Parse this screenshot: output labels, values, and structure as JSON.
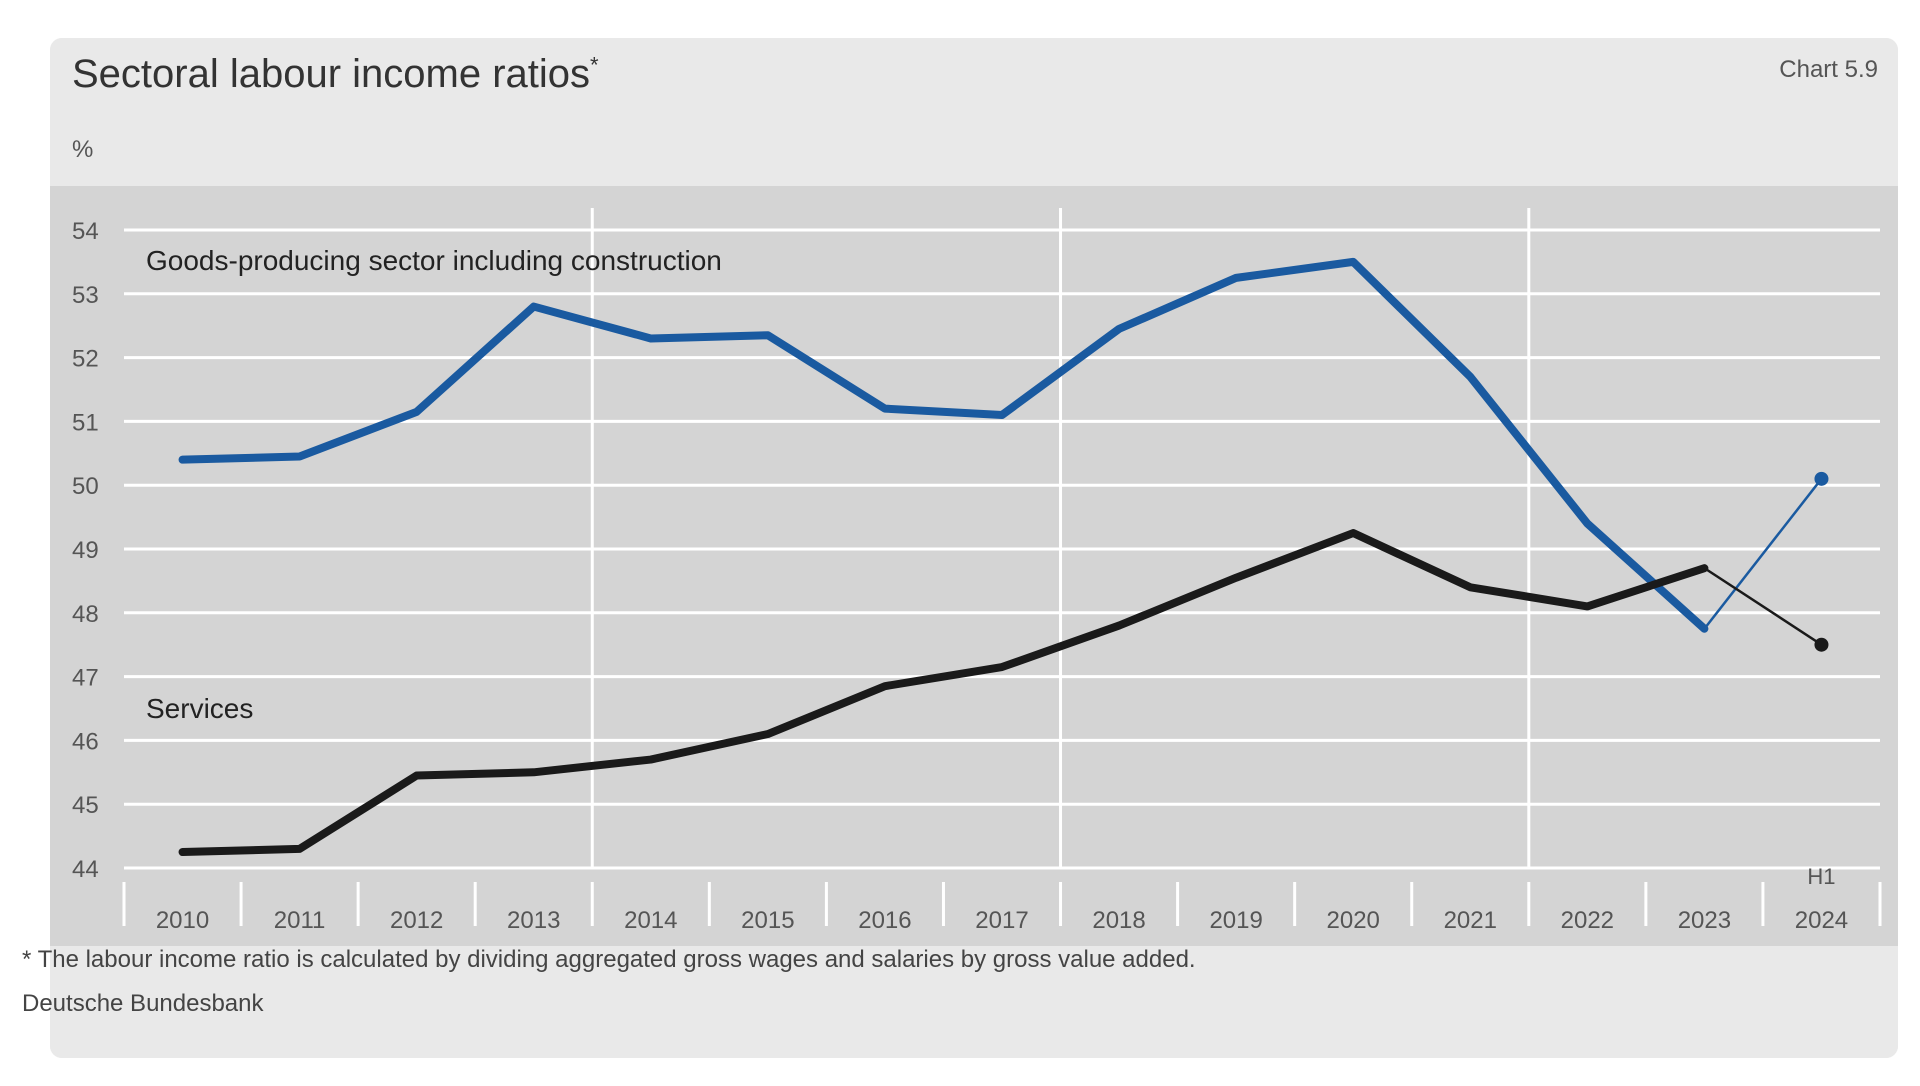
{
  "header": {
    "title": "Sectoral labour income ratios",
    "title_marker": "*",
    "chart_number": "Chart 5.9",
    "unit": "%"
  },
  "footer": {
    "footnote": "* The labour income ratio is calculated by dividing aggregated gross wages and salaries by gross value added.",
    "source": "Deutsche Bundesbank"
  },
  "colors": {
    "goods_series": "#1a5aa0",
    "services_series": "#1a1a1a",
    "plot_background": "#d4d4d4",
    "gridline": "#ffffff"
  },
  "chart_data": {
    "type": "line",
    "title": "Sectoral labour income ratios",
    "ylabel": "%",
    "ylim": [
      44,
      54
    ],
    "yticks": [
      44,
      45,
      46,
      47,
      48,
      49,
      50,
      51,
      52,
      53,
      54
    ],
    "categories": [
      "2010",
      "2011",
      "2012",
      "2013",
      "2014",
      "2015",
      "2016",
      "2017",
      "2018",
      "2019",
      "2020",
      "2021",
      "2022",
      "2023",
      "2024"
    ],
    "period_note": "H1",
    "period_note_category": "2024",
    "grid": true,
    "series": [
      {
        "name": "Goods-producing sector including construction",
        "color": "#1a5aa0",
        "values": [
          50.4,
          50.45,
          51.15,
          52.8,
          52.3,
          52.35,
          51.2,
          51.1,
          52.45,
          53.25,
          53.5,
          51.7,
          49.4,
          47.75,
          50.1
        ],
        "thin_final_segment": true
      },
      {
        "name": "Services",
        "color": "#1a1a1a",
        "values": [
          44.25,
          44.3,
          45.45,
          45.5,
          45.7,
          46.1,
          46.85,
          47.15,
          47.8,
          48.55,
          49.25,
          48.4,
          48.1,
          48.7,
          47.5
        ],
        "thin_final_segment": true
      }
    ]
  }
}
